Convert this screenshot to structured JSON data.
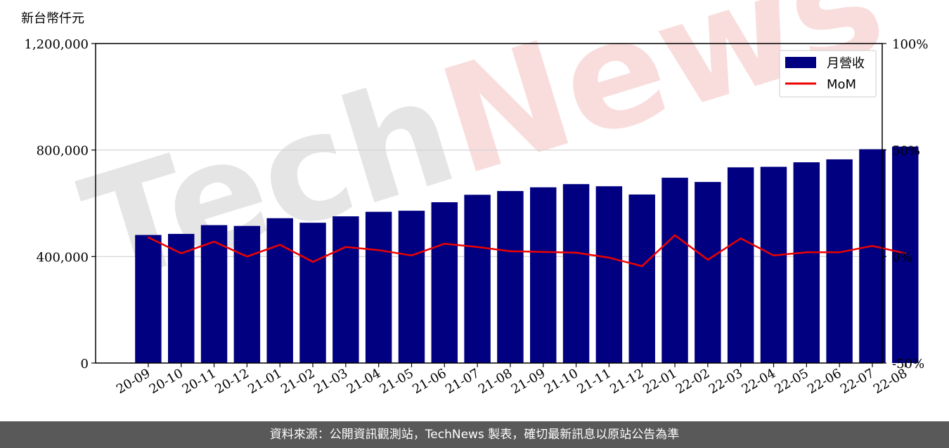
{
  "unit_label": "新台幣仟元",
  "watermark": "TechNews",
  "footer": "資料來源：公開資訊觀測站，TechNews 製表，確切最新訊息以原站公告為準",
  "colors": {
    "bar": "#000080",
    "line": "#ee0000",
    "grid": "#d0d0d0",
    "watermark_left": "#e5e5e5",
    "watermark_right": "#f9dddd",
    "footer_bg": "#595959"
  },
  "chart_data": {
    "type": "bar",
    "categories": [
      "20-09",
      "20-10",
      "20-11",
      "20-12",
      "21-01",
      "21-02",
      "21-03",
      "21-04",
      "21-05",
      "21-06",
      "21-07",
      "21-08",
      "21-09",
      "21-10",
      "21-11",
      "21-12",
      "22-01",
      "22-02",
      "22-03",
      "22-04",
      "22-05",
      "22-06",
      "22-07",
      "22-08"
    ],
    "series": [
      {
        "name": "月營收",
        "type": "bar",
        "axis": "left",
        "values": [
          481000,
          485000,
          518000,
          515000,
          544000,
          527000,
          551000,
          568000,
          572000,
          604000,
          632000,
          646000,
          660000,
          672000,
          664000,
          633000,
          696000,
          680000,
          735000,
          737000,
          754000,
          765000,
          803000,
          813000
        ]
      },
      {
        "name": "MoM",
        "type": "line",
        "axis": "right",
        "values": [
          9.0,
          1.5,
          7.0,
          0.0,
          5.5,
          -2.5,
          4.5,
          3.0,
          0.5,
          6.0,
          4.5,
          2.5,
          2.2,
          1.8,
          -0.5,
          -4.5,
          10.0,
          -1.5,
          8.5,
          0.5,
          2.0,
          2.0,
          5.0,
          1.5
        ]
      }
    ],
    "y_left": {
      "lim": [
        0,
        1200000
      ],
      "ticks": [
        0,
        400000,
        800000,
        1200000
      ],
      "tick_labels": [
        "0",
        "400,000",
        "800,000",
        "1,200,000"
      ]
    },
    "y_right": {
      "lim": [
        -50,
        100
      ],
      "ticks": [
        -50,
        0,
        50,
        100
      ],
      "tick_labels": [
        "-50%",
        "0%",
        "50%",
        "100%"
      ]
    },
    "grid": "horizontal",
    "legend_position": "top-right"
  }
}
